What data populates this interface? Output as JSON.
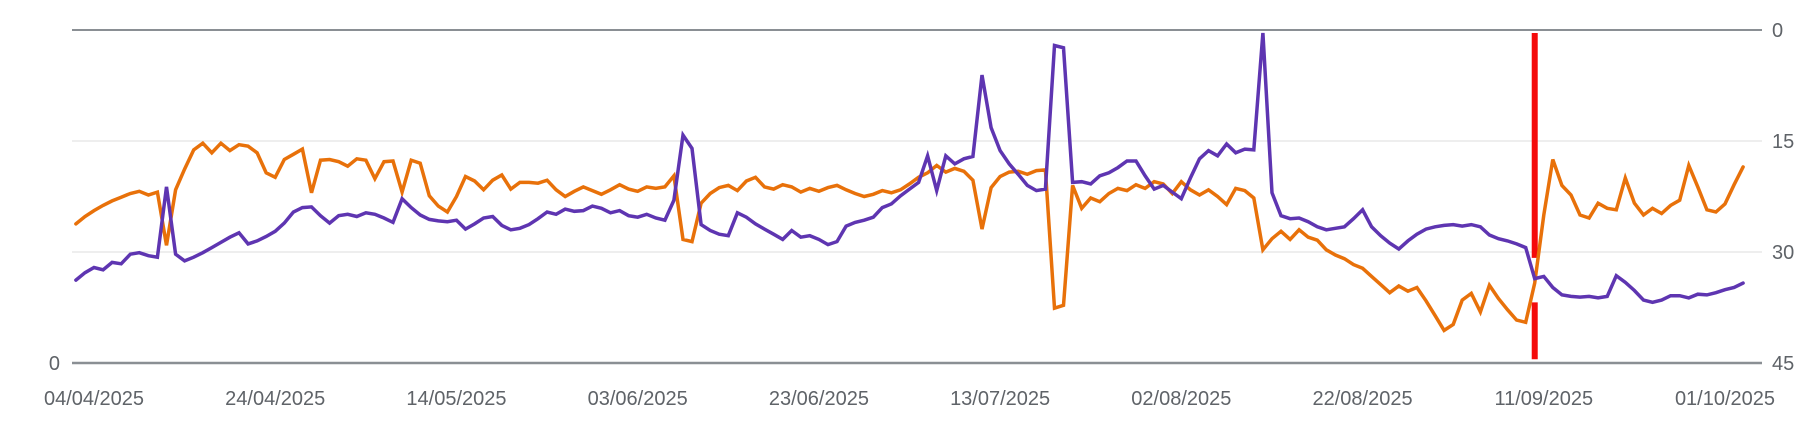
{
  "chart_data": {
    "type": "line",
    "title": "",
    "description": "Daily position-tracking line chart with inverted right axis (0 best at top, 45 at bottom), two series and a red vertical event marker",
    "background": "#ffffff",
    "label_color": "#5f6368",
    "grid": {
      "inner_color": "#e4e4e4",
      "boundary_color": "#8a8f94"
    },
    "x_axis": {
      "num_points": 185,
      "tick_indices": [
        2,
        22,
        42,
        62,
        82,
        102,
        122,
        142,
        162,
        182
      ],
      "tick_labels": [
        "04/04/2025",
        "24/04/2025",
        "14/05/2025",
        "03/06/2025",
        "23/06/2025",
        "13/07/2025",
        "02/08/2025",
        "22/08/2025",
        "11/09/2025",
        "01/10/2025"
      ]
    },
    "y_axis_right": {
      "tick_values": [
        0,
        15,
        30,
        45
      ],
      "tick_labels": [
        "0",
        "15",
        "30",
        "45"
      ],
      "range": [
        0,
        45
      ],
      "inverted": true
    },
    "y_axis_left": {
      "tick_labels": [
        "0"
      ]
    },
    "series": [
      {
        "name": "series-orange",
        "color": "#E8710A",
        "values": [
          26.2,
          25.2,
          24.4,
          23.7,
          23.1,
          22.6,
          22.1,
          21.8,
          22.3,
          21.9,
          29.1,
          21.6,
          18.8,
          16.2,
          15.3,
          16.6,
          15.3,
          16.3,
          15.5,
          15.7,
          16.6,
          19.3,
          19.9,
          17.5,
          16.8,
          16.1,
          22.0,
          17.6,
          17.5,
          17.8,
          18.4,
          17.4,
          17.6,
          20.1,
          17.8,
          17.7,
          21.9,
          17.6,
          18.0,
          22.4,
          23.8,
          24.6,
          22.5,
          19.8,
          20.4,
          21.6,
          20.3,
          19.6,
          21.5,
          20.6,
          20.6,
          20.7,
          20.3,
          21.6,
          22.5,
          21.8,
          21.2,
          21.7,
          22.2,
          21.6,
          20.9,
          21.5,
          21.8,
          21.2,
          21.4,
          21.2,
          19.7,
          28.3,
          28.6,
          23.4,
          22.1,
          21.3,
          21.0,
          21.7,
          20.4,
          19.9,
          21.2,
          21.5,
          20.9,
          21.2,
          21.9,
          21.4,
          21.8,
          21.3,
          21.0,
          21.6,
          22.1,
          22.5,
          22.2,
          21.7,
          22.0,
          21.6,
          20.8,
          19.9,
          19.3,
          18.3,
          19.2,
          18.7,
          19.1,
          20.3,
          26.9,
          21.3,
          19.8,
          19.2,
          19.1,
          19.5,
          19.0,
          18.9,
          37.6,
          37.2,
          21.0,
          24.1,
          22.7,
          23.2,
          22.1,
          21.4,
          21.7,
          20.9,
          21.4,
          20.5,
          20.8,
          22.1,
          20.5,
          21.6,
          22.3,
          21.6,
          22.5,
          23.6,
          21.4,
          21.7,
          22.7,
          29.7,
          28.2,
          27.2,
          28.3,
          27.0,
          28.0,
          28.4,
          29.7,
          30.4,
          30.9,
          31.7,
          32.2,
          33.3,
          34.4,
          35.5,
          34.6,
          35.3,
          34.8,
          36.6,
          38.6,
          40.6,
          39.8,
          36.5,
          35.6,
          38.1,
          34.5,
          36.3,
          37.8,
          39.2,
          39.5,
          34.2,
          25.0,
          17.5,
          21.0,
          22.3,
          25.0,
          25.4,
          23.4,
          24.1,
          24.3,
          20.0,
          23.4,
          25.0,
          24.1,
          24.8,
          23.7,
          23.0,
          18.3,
          21.2,
          24.3,
          24.6,
          23.5,
          20.9,
          18.5
        ]
      },
      {
        "name": "series-purple",
        "color": "#5E35B1",
        "values": [
          33.8,
          32.8,
          32.1,
          32.4,
          31.4,
          31.6,
          30.3,
          30.1,
          30.5,
          30.7,
          21.2,
          30.3,
          31.2,
          30.7,
          30.1,
          29.4,
          28.7,
          28.0,
          27.4,
          28.9,
          28.5,
          27.9,
          27.2,
          26.1,
          24.6,
          24.0,
          23.9,
          25.1,
          26.1,
          25.1,
          24.9,
          25.2,
          24.7,
          24.9,
          25.4,
          26.0,
          22.8,
          24.0,
          25.0,
          25.6,
          25.8,
          25.9,
          25.7,
          26.9,
          26.2,
          25.4,
          25.2,
          26.4,
          27.0,
          26.8,
          26.3,
          25.5,
          24.6,
          24.9,
          24.2,
          24.5,
          24.4,
          23.8,
          24.1,
          24.7,
          24.4,
          25.1,
          25.3,
          24.9,
          25.4,
          25.7,
          23.0,
          14.2,
          16.0,
          26.3,
          27.1,
          27.6,
          27.8,
          24.7,
          25.3,
          26.2,
          26.9,
          27.6,
          28.3,
          27.1,
          28.0,
          27.8,
          28.3,
          29.0,
          28.6,
          26.5,
          26.0,
          25.7,
          25.3,
          24.0,
          23.5,
          22.4,
          21.5,
          20.6,
          17.0,
          21.7,
          17.0,
          18.1,
          17.4,
          17.1,
          6.1,
          13.2,
          16.3,
          18.1,
          19.5,
          21.0,
          21.7,
          21.5,
          2.1,
          2.4,
          20.6,
          20.5,
          20.8,
          19.7,
          19.3,
          18.6,
          17.7,
          17.7,
          19.7,
          21.5,
          21.0,
          21.9,
          22.8,
          20.0,
          17.4,
          16.3,
          17.0,
          15.4,
          16.6,
          16.1,
          16.2,
          0.4,
          22.0,
          25.1,
          25.5,
          25.4,
          25.9,
          26.6,
          27.0,
          26.8,
          26.6,
          25.5,
          24.3,
          26.6,
          27.8,
          28.8,
          29.6,
          28.5,
          27.6,
          26.9,
          26.6,
          26.4,
          26.3,
          26.5,
          26.3,
          26.6,
          27.7,
          28.2,
          28.5,
          28.9,
          29.4,
          33.6,
          33.3,
          34.8,
          35.8,
          36.0,
          36.1,
          36.0,
          36.2,
          36.0,
          33.2,
          34.1,
          35.2,
          36.5,
          36.8,
          36.5,
          35.9,
          35.9,
          36.2,
          35.7,
          35.8,
          35.5,
          35.1,
          34.8,
          34.2
        ]
      }
    ],
    "marker": {
      "name": "red-event-marker",
      "color": "#F40B0B",
      "x_index": 161,
      "segments_values": [
        [
          0.4,
          30.8
        ],
        [
          36.8,
          44.5
        ]
      ]
    }
  }
}
